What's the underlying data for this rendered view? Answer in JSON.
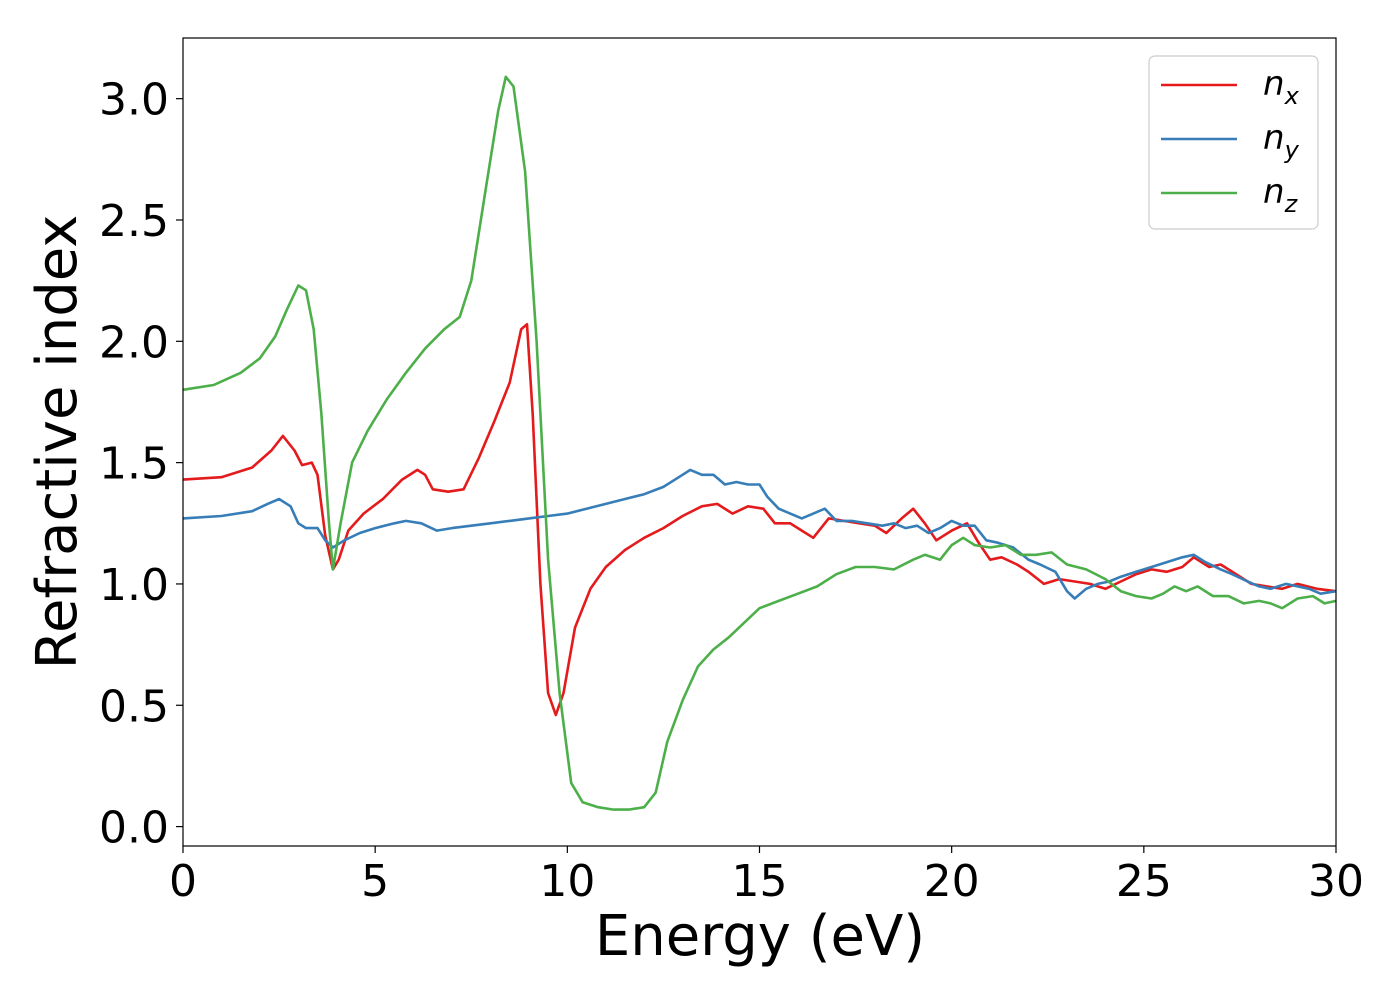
{
  "chart_data": {
    "type": "line",
    "xlabel": "Energy (eV)",
    "ylabel": "Refractive index",
    "xlim": [
      0,
      30
    ],
    "ylim": [
      -0.08,
      3.25
    ],
    "grid": false,
    "legend_position": "top-right",
    "x_ticks": [
      "0",
      "5",
      "10",
      "15",
      "20",
      "25",
      "30"
    ],
    "y_ticks": [
      "0.0",
      "0.5",
      "1.0",
      "1.5",
      "2.0",
      "2.5",
      "3.0"
    ],
    "series": [
      {
        "name": "n",
        "subscript": "x",
        "color": "#e41a1c",
        "points": [
          [
            0,
            1.43
          ],
          [
            1,
            1.44
          ],
          [
            1.8,
            1.48
          ],
          [
            2.3,
            1.55
          ],
          [
            2.6,
            1.61
          ],
          [
            2.9,
            1.55
          ],
          [
            3.1,
            1.49
          ],
          [
            3.35,
            1.5
          ],
          [
            3.5,
            1.45
          ],
          [
            3.7,
            1.2
          ],
          [
            3.9,
            1.06
          ],
          [
            4.05,
            1.1
          ],
          [
            4.3,
            1.22
          ],
          [
            4.7,
            1.29
          ],
          [
            5.2,
            1.35
          ],
          [
            5.7,
            1.43
          ],
          [
            6.1,
            1.47
          ],
          [
            6.3,
            1.45
          ],
          [
            6.5,
            1.39
          ],
          [
            6.9,
            1.38
          ],
          [
            7.3,
            1.39
          ],
          [
            7.7,
            1.52
          ],
          [
            8.1,
            1.67
          ],
          [
            8.5,
            1.83
          ],
          [
            8.8,
            2.05
          ],
          [
            8.95,
            2.07
          ],
          [
            9.1,
            1.7
          ],
          [
            9.3,
            1.0
          ],
          [
            9.5,
            0.55
          ],
          [
            9.7,
            0.46
          ],
          [
            9.9,
            0.55
          ],
          [
            10.2,
            0.82
          ],
          [
            10.6,
            0.98
          ],
          [
            11.0,
            1.07
          ],
          [
            11.5,
            1.14
          ],
          [
            12.0,
            1.19
          ],
          [
            12.5,
            1.23
          ],
          [
            13.0,
            1.28
          ],
          [
            13.5,
            1.32
          ],
          [
            13.9,
            1.33
          ],
          [
            14.3,
            1.29
          ],
          [
            14.7,
            1.32
          ],
          [
            15.1,
            1.31
          ],
          [
            15.4,
            1.25
          ],
          [
            15.8,
            1.25
          ],
          [
            16.1,
            1.22
          ],
          [
            16.4,
            1.19
          ],
          [
            16.8,
            1.27
          ],
          [
            17.2,
            1.26
          ],
          [
            17.6,
            1.25
          ],
          [
            18.0,
            1.24
          ],
          [
            18.3,
            1.21
          ],
          [
            18.7,
            1.27
          ],
          [
            19.0,
            1.31
          ],
          [
            19.3,
            1.25
          ],
          [
            19.6,
            1.18
          ],
          [
            20.0,
            1.22
          ],
          [
            20.4,
            1.25
          ],
          [
            20.7,
            1.17
          ],
          [
            21.0,
            1.1
          ],
          [
            21.3,
            1.11
          ],
          [
            21.7,
            1.08
          ],
          [
            22.0,
            1.05
          ],
          [
            22.4,
            1.0
          ],
          [
            22.8,
            1.02
          ],
          [
            23.2,
            1.01
          ],
          [
            23.6,
            1.0
          ],
          [
            24.0,
            0.98
          ],
          [
            24.4,
            1.01
          ],
          [
            24.8,
            1.04
          ],
          [
            25.2,
            1.06
          ],
          [
            25.6,
            1.05
          ],
          [
            26.0,
            1.07
          ],
          [
            26.3,
            1.11
          ],
          [
            26.7,
            1.07
          ],
          [
            27.0,
            1.08
          ],
          [
            27.4,
            1.04
          ],
          [
            27.8,
            1.0
          ],
          [
            28.2,
            0.99
          ],
          [
            28.6,
            0.98
          ],
          [
            29.0,
            1.0
          ],
          [
            29.5,
            0.98
          ],
          [
            30.0,
            0.97
          ]
        ]
      },
      {
        "name": "n",
        "subscript": "y",
        "color": "#377eb8",
        "points": [
          [
            0,
            1.27
          ],
          [
            1,
            1.28
          ],
          [
            1.8,
            1.3
          ],
          [
            2.2,
            1.33
          ],
          [
            2.5,
            1.35
          ],
          [
            2.8,
            1.32
          ],
          [
            3.0,
            1.25
          ],
          [
            3.2,
            1.23
          ],
          [
            3.5,
            1.23
          ],
          [
            3.7,
            1.18
          ],
          [
            3.9,
            1.15
          ],
          [
            4.2,
            1.18
          ],
          [
            4.6,
            1.21
          ],
          [
            5.0,
            1.23
          ],
          [
            5.5,
            1.25
          ],
          [
            5.8,
            1.26
          ],
          [
            6.2,
            1.25
          ],
          [
            6.6,
            1.22
          ],
          [
            7.0,
            1.23
          ],
          [
            7.5,
            1.24
          ],
          [
            8.0,
            1.25
          ],
          [
            8.5,
            1.26
          ],
          [
            9.0,
            1.27
          ],
          [
            9.5,
            1.28
          ],
          [
            10.0,
            1.29
          ],
          [
            10.5,
            1.31
          ],
          [
            11.0,
            1.33
          ],
          [
            11.5,
            1.35
          ],
          [
            12.0,
            1.37
          ],
          [
            12.5,
            1.4
          ],
          [
            12.9,
            1.44
          ],
          [
            13.2,
            1.47
          ],
          [
            13.5,
            1.45
          ],
          [
            13.8,
            1.45
          ],
          [
            14.1,
            1.41
          ],
          [
            14.4,
            1.42
          ],
          [
            14.7,
            1.41
          ],
          [
            15.0,
            1.41
          ],
          [
            15.2,
            1.36
          ],
          [
            15.5,
            1.31
          ],
          [
            15.8,
            1.29
          ],
          [
            16.1,
            1.27
          ],
          [
            16.4,
            1.29
          ],
          [
            16.7,
            1.31
          ],
          [
            17.0,
            1.26
          ],
          [
            17.4,
            1.26
          ],
          [
            17.8,
            1.25
          ],
          [
            18.2,
            1.24
          ],
          [
            18.5,
            1.25
          ],
          [
            18.8,
            1.23
          ],
          [
            19.1,
            1.24
          ],
          [
            19.4,
            1.21
          ],
          [
            19.7,
            1.23
          ],
          [
            20.0,
            1.26
          ],
          [
            20.3,
            1.24
          ],
          [
            20.6,
            1.24
          ],
          [
            20.9,
            1.18
          ],
          [
            21.2,
            1.17
          ],
          [
            21.6,
            1.15
          ],
          [
            22.0,
            1.1
          ],
          [
            22.3,
            1.08
          ],
          [
            22.7,
            1.05
          ],
          [
            23.0,
            0.97
          ],
          [
            23.2,
            0.94
          ],
          [
            23.5,
            0.98
          ],
          [
            23.8,
            1.0
          ],
          [
            24.1,
            1.01
          ],
          [
            24.4,
            1.03
          ],
          [
            24.8,
            1.05
          ],
          [
            25.2,
            1.07
          ],
          [
            25.6,
            1.09
          ],
          [
            26.0,
            1.11
          ],
          [
            26.3,
            1.12
          ],
          [
            26.6,
            1.09
          ],
          [
            27.0,
            1.06
          ],
          [
            27.3,
            1.04
          ],
          [
            27.7,
            1.01
          ],
          [
            28.0,
            0.99
          ],
          [
            28.3,
            0.98
          ],
          [
            28.7,
            1.0
          ],
          [
            29.0,
            0.99
          ],
          [
            29.3,
            0.98
          ],
          [
            29.6,
            0.96
          ],
          [
            30.0,
            0.97
          ]
        ]
      },
      {
        "name": "n",
        "subscript": "z",
        "color": "#4daf4a",
        "points": [
          [
            0,
            1.8
          ],
          [
            0.8,
            1.82
          ],
          [
            1.5,
            1.87
          ],
          [
            2.0,
            1.93
          ],
          [
            2.4,
            2.02
          ],
          [
            2.7,
            2.13
          ],
          [
            3.0,
            2.23
          ],
          [
            3.2,
            2.21
          ],
          [
            3.4,
            2.05
          ],
          [
            3.6,
            1.7
          ],
          [
            3.8,
            1.25
          ],
          [
            3.9,
            1.06
          ],
          [
            4.1,
            1.25
          ],
          [
            4.4,
            1.5
          ],
          [
            4.8,
            1.63
          ],
          [
            5.3,
            1.76
          ],
          [
            5.8,
            1.87
          ],
          [
            6.3,
            1.97
          ],
          [
            6.8,
            2.05
          ],
          [
            7.2,
            2.1
          ],
          [
            7.5,
            2.25
          ],
          [
            7.9,
            2.65
          ],
          [
            8.2,
            2.95
          ],
          [
            8.4,
            3.09
          ],
          [
            8.6,
            3.05
          ],
          [
            8.9,
            2.7
          ],
          [
            9.2,
            2.0
          ],
          [
            9.5,
            1.1
          ],
          [
            9.8,
            0.55
          ],
          [
            10.1,
            0.18
          ],
          [
            10.4,
            0.1
          ],
          [
            10.8,
            0.08
          ],
          [
            11.2,
            0.07
          ],
          [
            11.6,
            0.07
          ],
          [
            12.0,
            0.08
          ],
          [
            12.3,
            0.14
          ],
          [
            12.6,
            0.35
          ],
          [
            13.0,
            0.52
          ],
          [
            13.4,
            0.66
          ],
          [
            13.8,
            0.73
          ],
          [
            14.2,
            0.78
          ],
          [
            14.6,
            0.84
          ],
          [
            15.0,
            0.9
          ],
          [
            15.5,
            0.93
          ],
          [
            16.0,
            0.96
          ],
          [
            16.5,
            0.99
          ],
          [
            17.0,
            1.04
          ],
          [
            17.5,
            1.07
          ],
          [
            18.0,
            1.07
          ],
          [
            18.5,
            1.06
          ],
          [
            19.0,
            1.1
          ],
          [
            19.3,
            1.12
          ],
          [
            19.7,
            1.1
          ],
          [
            20.0,
            1.16
          ],
          [
            20.3,
            1.19
          ],
          [
            20.6,
            1.16
          ],
          [
            21.0,
            1.15
          ],
          [
            21.4,
            1.16
          ],
          [
            21.8,
            1.12
          ],
          [
            22.2,
            1.12
          ],
          [
            22.6,
            1.13
          ],
          [
            23.0,
            1.08
          ],
          [
            23.5,
            1.06
          ],
          [
            24.0,
            1.02
          ],
          [
            24.4,
            0.97
          ],
          [
            24.8,
            0.95
          ],
          [
            25.2,
            0.94
          ],
          [
            25.5,
            0.96
          ],
          [
            25.8,
            0.99
          ],
          [
            26.1,
            0.97
          ],
          [
            26.4,
            0.99
          ],
          [
            26.8,
            0.95
          ],
          [
            27.2,
            0.95
          ],
          [
            27.6,
            0.92
          ],
          [
            28.0,
            0.93
          ],
          [
            28.3,
            0.92
          ],
          [
            28.6,
            0.9
          ],
          [
            29.0,
            0.94
          ],
          [
            29.4,
            0.95
          ],
          [
            29.7,
            0.92
          ],
          [
            30.0,
            0.93
          ]
        ]
      }
    ]
  }
}
